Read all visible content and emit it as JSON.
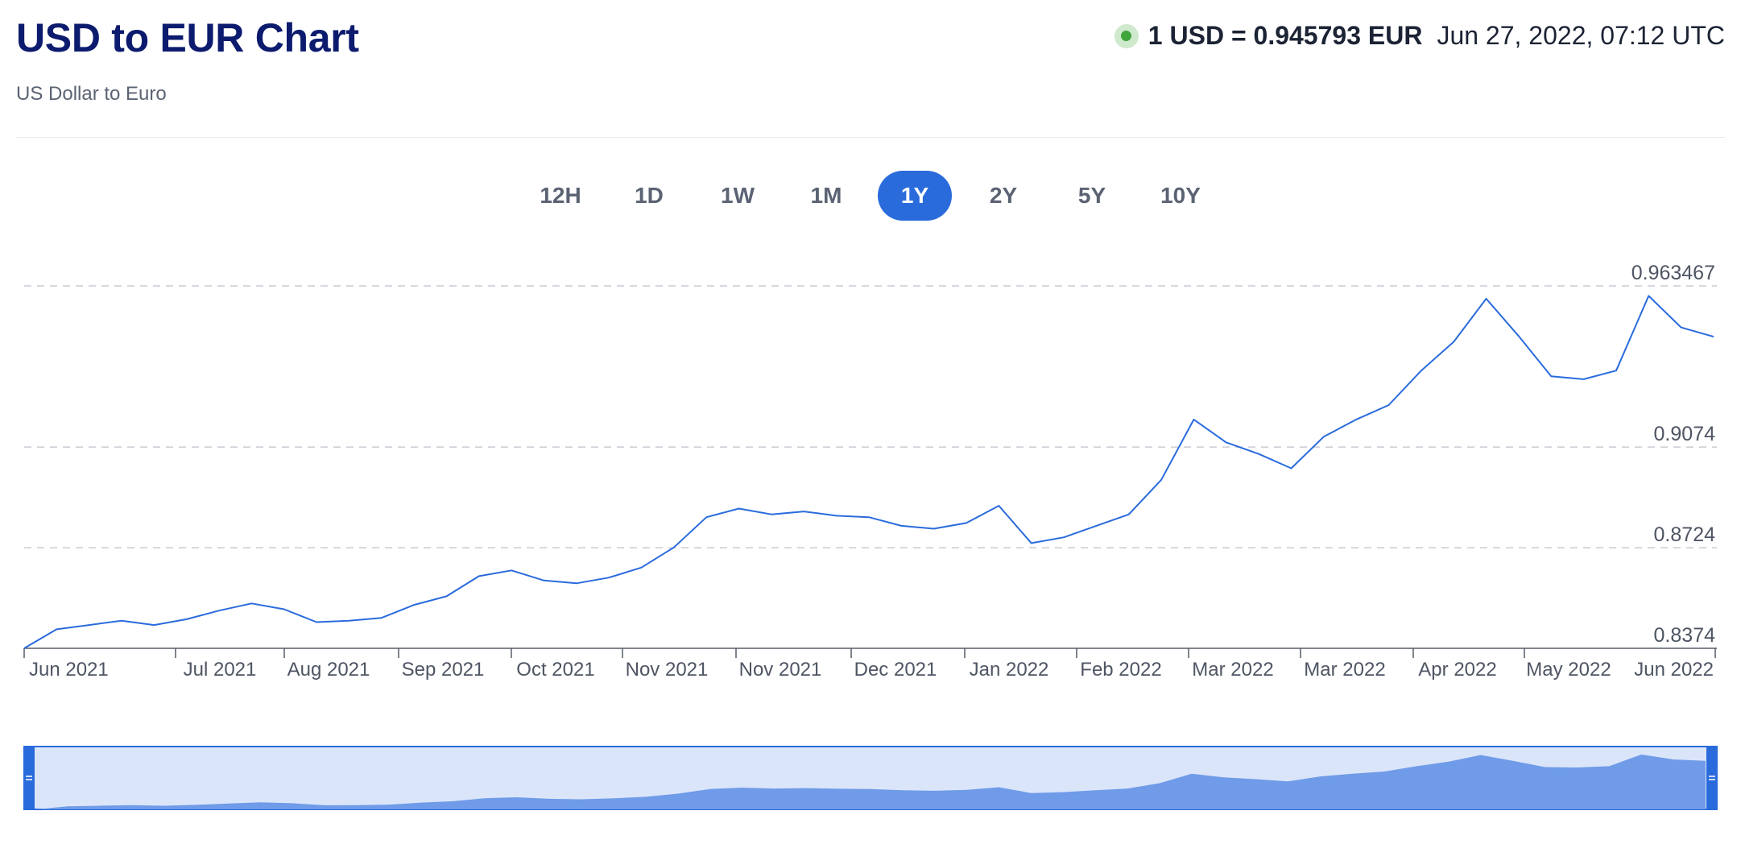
{
  "header": {
    "title": "USD to EUR Chart",
    "subtitle": "US Dollar to Euro"
  },
  "rate": {
    "text": "1 USD = 0.945793 EUR",
    "timestamp": "Jun 27, 2022, 07:12 UTC",
    "status_icon": "live-dot-icon",
    "status_color": "#3fa53b"
  },
  "range_tabs": [
    {
      "label": "12H",
      "active": false
    },
    {
      "label": "1D",
      "active": false
    },
    {
      "label": "1W",
      "active": false
    },
    {
      "label": "1M",
      "active": false
    },
    {
      "label": "1Y",
      "active": true
    },
    {
      "label": "2Y",
      "active": false
    },
    {
      "label": "5Y",
      "active": false
    },
    {
      "label": "10Y",
      "active": false
    }
  ],
  "colors": {
    "title": "#0c1b6e",
    "accent": "#2a6bdc",
    "line": "#2a6bdc",
    "navigator_fill": "#6f9be8",
    "navigator_bg": "#dbe5fa"
  },
  "chart_data": {
    "type": "line",
    "title": "",
    "xlabel": "",
    "ylabel": "",
    "series": [
      {
        "name": "",
        "x": [
          "2021-06-27",
          "2021-07-05",
          "2021-07-12",
          "2021-07-19",
          "2021-07-26",
          "2021-08-02",
          "2021-08-09",
          "2021-08-16",
          "2021-08-23",
          "2021-08-30",
          "2021-09-06",
          "2021-09-13",
          "2021-09-20",
          "2021-09-27",
          "2021-10-04",
          "2021-10-11",
          "2021-10-18",
          "2021-10-25",
          "2021-11-01",
          "2021-11-08",
          "2021-11-15",
          "2021-11-22",
          "2021-11-29",
          "2021-12-06",
          "2021-12-13",
          "2021-12-20",
          "2021-12-27",
          "2022-01-03",
          "2022-01-10",
          "2022-01-17",
          "2022-01-24",
          "2022-01-31",
          "2022-02-07",
          "2022-02-14",
          "2022-02-21",
          "2022-02-28",
          "2022-03-07",
          "2022-03-14",
          "2022-03-21",
          "2022-03-28",
          "2022-04-04",
          "2022-04-11",
          "2022-04-18",
          "2022-04-25",
          "2022-05-02",
          "2022-05-09",
          "2022-05-16",
          "2022-05-23",
          "2022-05-30",
          "2022-06-06",
          "2022-06-13",
          "2022-06-20",
          "2022-06-27"
        ],
        "y": [
          0.8374,
          0.844,
          0.8455,
          0.847,
          0.8455,
          0.8475,
          0.8505,
          0.853,
          0.851,
          0.8465,
          0.847,
          0.848,
          0.8525,
          0.8555,
          0.8625,
          0.8645,
          0.861,
          0.86,
          0.862,
          0.8655,
          0.8725,
          0.883,
          0.886,
          0.884,
          0.885,
          0.8835,
          0.883,
          0.88,
          0.879,
          0.881,
          0.887,
          0.874,
          0.876,
          0.88,
          0.884,
          0.896,
          0.917,
          0.909,
          0.905,
          0.9,
          0.911,
          0.917,
          0.922,
          0.934,
          0.944,
          0.959,
          0.946,
          0.932,
          0.931,
          0.934,
          0.96,
          0.949,
          0.9458
        ]
      }
    ],
    "y_ticks": [
      "0.963467",
      "0.9074",
      "0.8724",
      "0.8374"
    ],
    "x_ticks": [
      "Jun 2021",
      "Jul 2021",
      "Aug 2021",
      "Sep 2021",
      "Oct 2021",
      "Nov 2021",
      "Nov 2021",
      "Dec 2021",
      "Jan 2022",
      "Feb 2022",
      "Mar 2022",
      "Mar 2022",
      "Apr 2022",
      "May 2022",
      "Jun 2022"
    ],
    "ylim": [
      0.8374,
      0.963467
    ],
    "grid": true,
    "legend": "none",
    "navigator": true
  }
}
